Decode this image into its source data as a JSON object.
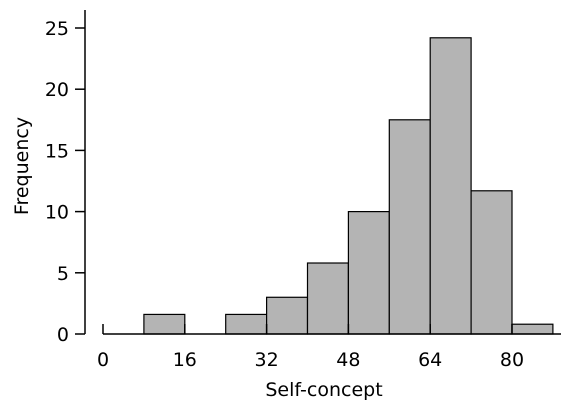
{
  "chart_data": {
    "type": "bar",
    "title": "",
    "xlabel": "Self-concept",
    "ylabel": "Frequency",
    "bin_width": 8,
    "bins": [
      {
        "start": 0,
        "end": 8,
        "count": 0
      },
      {
        "start": 8,
        "end": 16,
        "count": 1.6
      },
      {
        "start": 16,
        "end": 24,
        "count": 0
      },
      {
        "start": 24,
        "end": 32,
        "count": 1.6
      },
      {
        "start": 32,
        "end": 40,
        "count": 3
      },
      {
        "start": 40,
        "end": 48,
        "count": 5.8
      },
      {
        "start": 48,
        "end": 56,
        "count": 10
      },
      {
        "start": 56,
        "end": 64,
        "count": 17.5
      },
      {
        "start": 64,
        "end": 72,
        "count": 24.2
      },
      {
        "start": 72,
        "end": 80,
        "count": 11.7
      },
      {
        "start": 80,
        "end": 88,
        "count": 0.8
      }
    ],
    "xlim": [
      0,
      88
    ],
    "ylim": [
      0,
      25
    ],
    "xticks": [
      0,
      16,
      32,
      48,
      64,
      80
    ],
    "yticks": [
      0,
      5,
      10,
      15,
      20,
      25
    ],
    "bar_color": "#b4b4b4",
    "edge_color": "#000000",
    "grid": false,
    "legend": "none"
  }
}
